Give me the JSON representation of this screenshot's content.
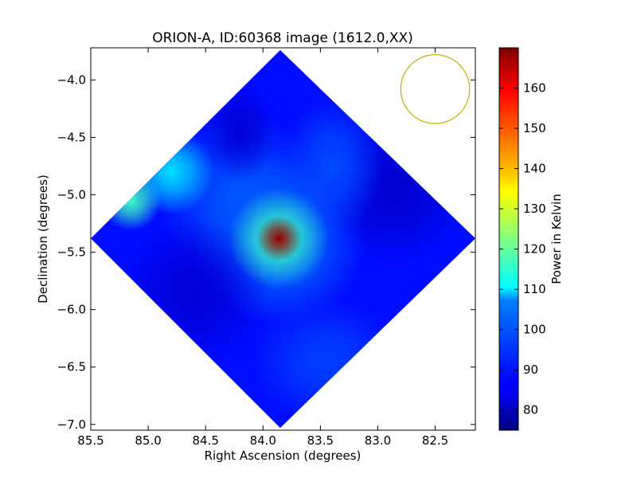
{
  "chart_data": {
    "type": "heatmap",
    "title": "ORION-A, ID:60368 image (1612.0,XX)",
    "xlabel": "Right Ascension (degrees)",
    "ylabel": "Declination (degrees)",
    "colorbar_label": "Power in Kelvin",
    "colormap": "jet",
    "xlim": [
      85.5,
      82.15
    ],
    "ylim": [
      -7.05,
      -3.72
    ],
    "x_ticks": [
      {
        "value": 85.5,
        "label": "85.5"
      },
      {
        "value": 85.0,
        "label": "85.0"
      },
      {
        "value": 84.5,
        "label": "84.5"
      },
      {
        "value": 84.0,
        "label": "84.0"
      },
      {
        "value": 83.5,
        "label": "83.5"
      },
      {
        "value": 83.0,
        "label": "83.0"
      },
      {
        "value": 82.5,
        "label": "82.5"
      }
    ],
    "y_ticks": [
      {
        "value": -4.0,
        "label": "−4.0"
      },
      {
        "value": -4.5,
        "label": "−4.5"
      },
      {
        "value": -5.0,
        "label": "−5.0"
      },
      {
        "value": -5.5,
        "label": "−5.5"
      },
      {
        "value": -6.0,
        "label": "−6.0"
      },
      {
        "value": -6.5,
        "label": "−6.5"
      },
      {
        "value": -7.0,
        "label": "−7.0"
      }
    ],
    "colorbar_range": [
      75,
      170
    ],
    "colorbar_ticks": [
      {
        "value": 80,
        "label": "80"
      },
      {
        "value": 90,
        "label": "90"
      },
      {
        "value": 100,
        "label": "100"
      },
      {
        "value": 110,
        "label": "110"
      },
      {
        "value": 120,
        "label": "120"
      },
      {
        "value": 130,
        "label": "130"
      },
      {
        "value": 140,
        "label": "140"
      },
      {
        "value": 150,
        "label": "150"
      },
      {
        "value": 160,
        "label": "160"
      }
    ],
    "map_extent": {
      "center": {
        "ra": 83.85,
        "dec": -5.38
      },
      "north": {
        "ra": 83.85,
        "dec": -3.74
      },
      "south": {
        "ra": 83.85,
        "dec": -7.03
      },
      "east": {
        "ra": 85.5,
        "dec": -5.38
      },
      "west": {
        "ra": 82.15,
        "dec": -5.38
      }
    },
    "background_level": 88,
    "features": [
      {
        "ra": 83.86,
        "dec": -5.38,
        "ra_sigma": 0.09,
        "dec_sigma": 0.09,
        "amplitude": 80
      },
      {
        "ra": 83.86,
        "dec": -5.38,
        "ra_sigma": 0.2,
        "dec_sigma": 0.2,
        "amplitude": 28
      },
      {
        "ra": 83.86,
        "dec": -5.4,
        "ra_sigma": 0.34,
        "dec_sigma": 0.34,
        "amplitude": 10
      },
      {
        "ra": 84.8,
        "dec": -4.8,
        "ra_sigma": 0.17,
        "dec_sigma": 0.17,
        "amplitude": 20
      },
      {
        "ra": 85.15,
        "dec": -5.05,
        "ra_sigma": 0.12,
        "dec_sigma": 0.12,
        "amplitude": 28
      },
      {
        "ra": 84.2,
        "dec": -5.0,
        "ra_sigma": 0.33,
        "dec_sigma": 0.33,
        "amplitude": 7
      },
      {
        "ra": 83.4,
        "dec": -4.75,
        "ra_sigma": 0.2,
        "dec_sigma": 0.27,
        "amplitude": 6
      },
      {
        "ra": 83.45,
        "dec": -6.45,
        "ra_sigma": 0.3,
        "dec_sigma": 0.25,
        "amplitude": 5
      },
      {
        "ra": 82.85,
        "dec": -4.95,
        "ra_sigma": 0.3,
        "dec_sigma": 0.3,
        "amplitude": -6
      },
      {
        "ra": 84.6,
        "dec": -5.85,
        "ra_sigma": 0.3,
        "dec_sigma": 0.3,
        "amplitude": -5
      },
      {
        "ra": 84.2,
        "dec": -4.45,
        "ra_sigma": 0.15,
        "dec_sigma": 0.2,
        "amplitude": -5
      }
    ],
    "beam": {
      "ra": 82.5,
      "dec": -4.08,
      "radius_deg": 0.3,
      "color": "#bfb000"
    },
    "grid": false
  }
}
